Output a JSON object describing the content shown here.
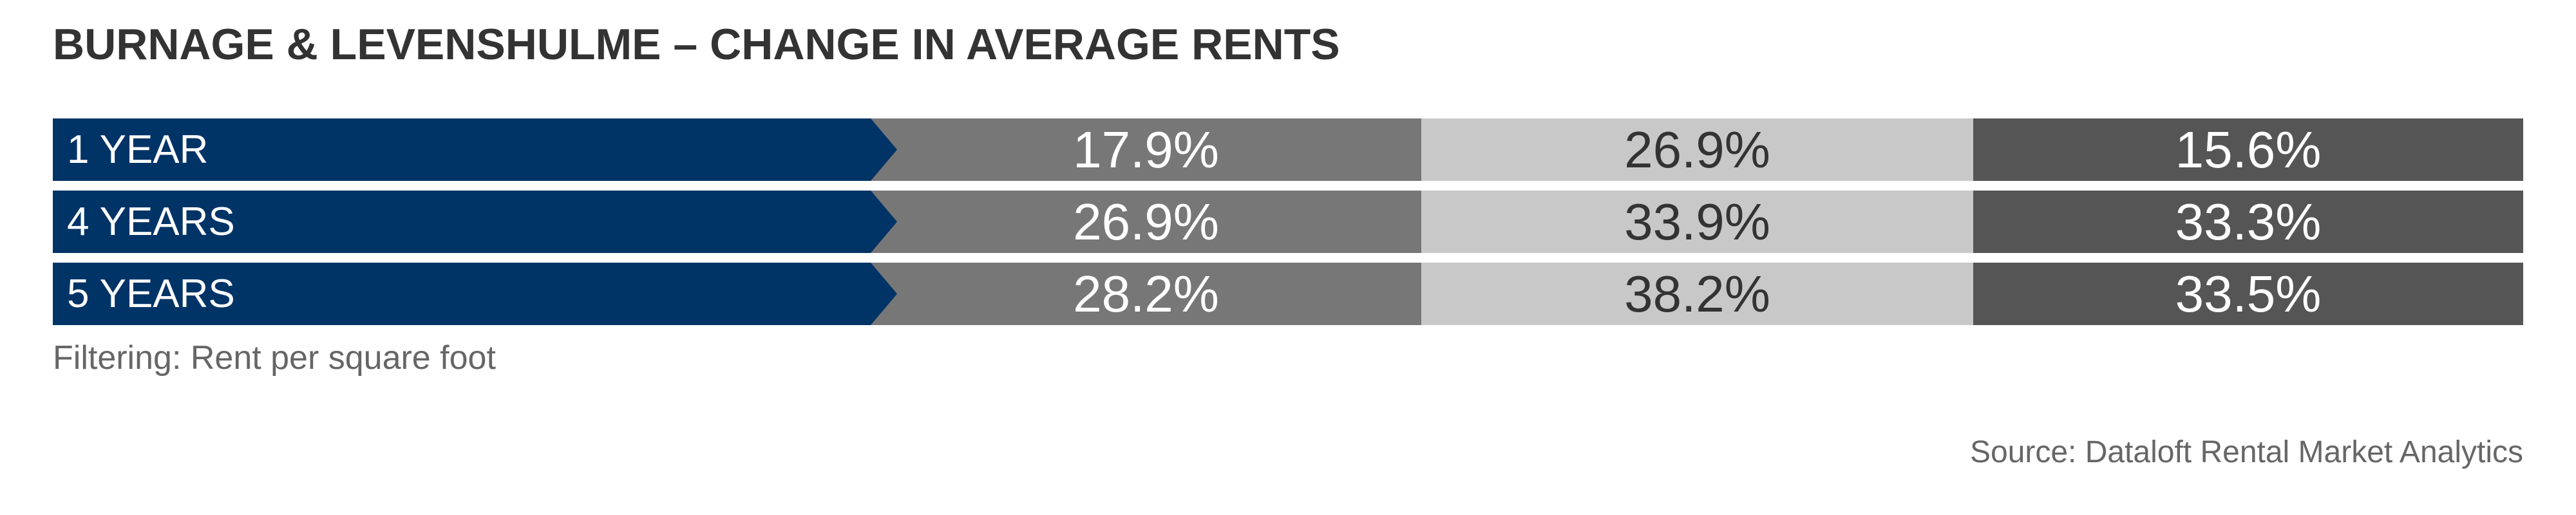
{
  "header": {
    "title": "BURNAGE & LEVENSHULME – CHANGE IN AVERAGE RENTS"
  },
  "table": {
    "rows": [
      {
        "label": "1 YEAR",
        "cells": [
          "17.9%",
          "26.9%",
          "15.6%"
        ]
      },
      {
        "label": "4 YEARS",
        "cells": [
          "26.9%",
          "33.9%",
          "33.3%"
        ]
      },
      {
        "label": "5 YEARS",
        "cells": [
          "28.2%",
          "38.2%",
          "33.5%"
        ]
      }
    ]
  },
  "footer": {
    "note": "Filtering: Rent per square foot",
    "source": "Source: Dataloft Rental Market Analytics"
  }
}
